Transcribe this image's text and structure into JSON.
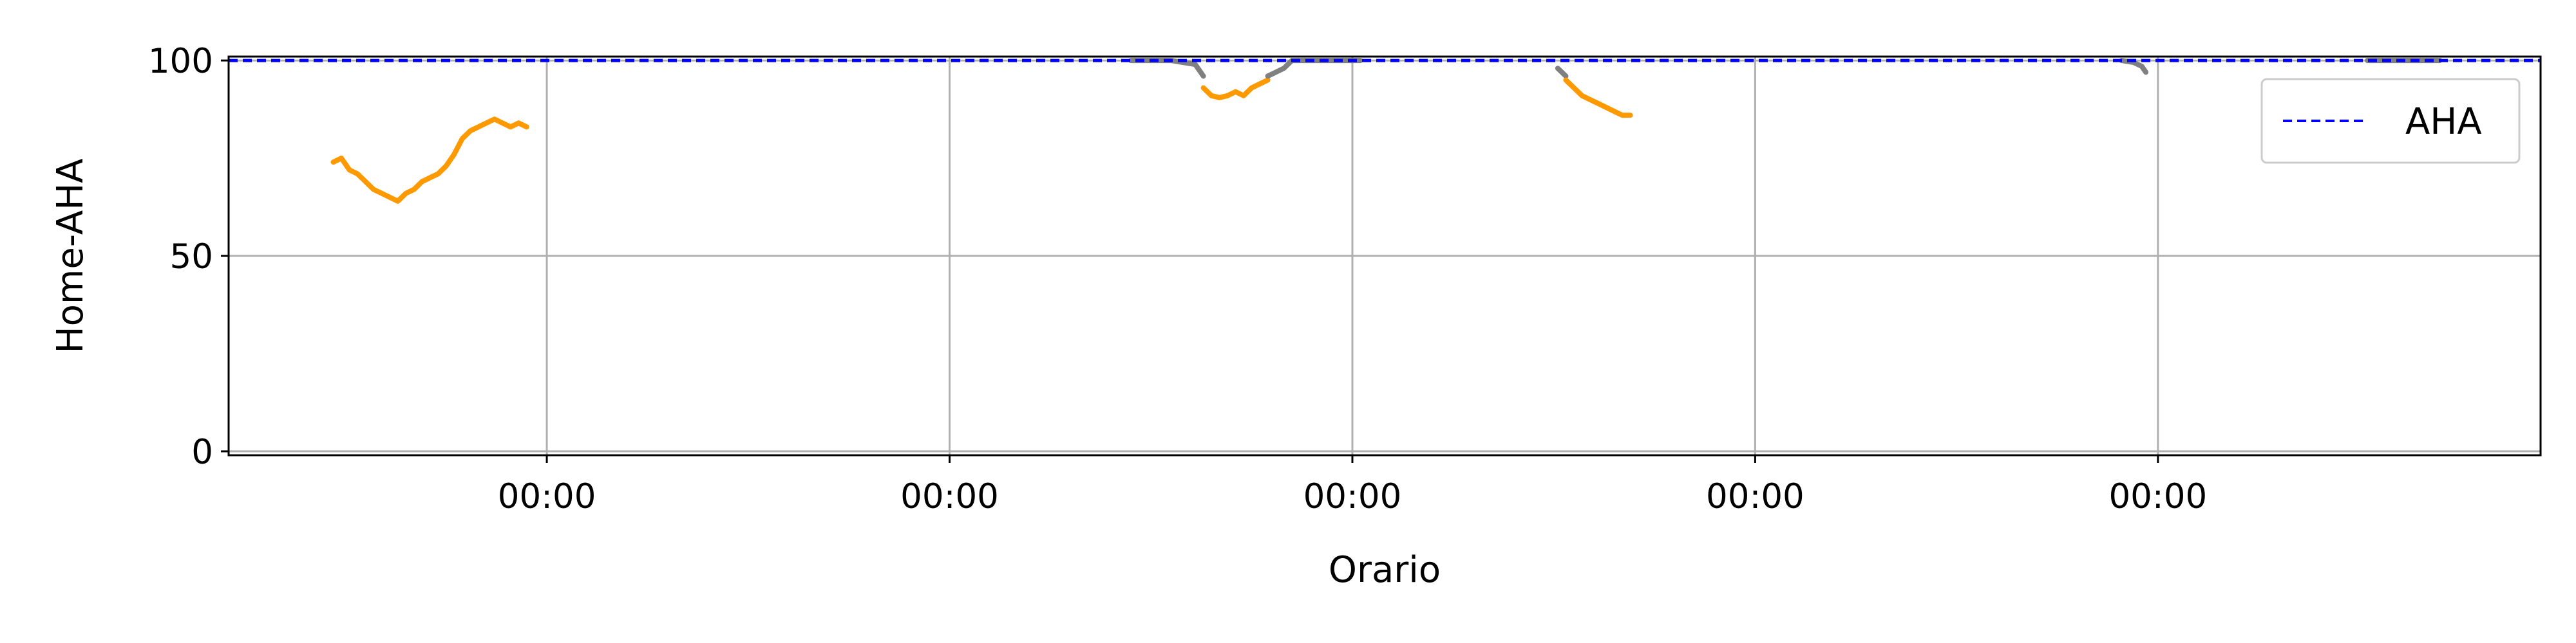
{
  "chart_data": {
    "type": "line",
    "title": "",
    "xlabel": "Orario",
    "ylabel": "Home-AHA",
    "ylim": [
      -1,
      101
    ],
    "yticks": [
      0,
      50,
      100
    ],
    "xticks": [
      {
        "pos": 1,
        "label": "00:00"
      },
      {
        "pos": 2,
        "label": "00:00"
      },
      {
        "pos": 3,
        "label": "00:00"
      },
      {
        "pos": 4,
        "label": "00:00"
      },
      {
        "pos": 5,
        "label": "00:00"
      }
    ],
    "xlim": [
      0.21,
      5.95
    ],
    "grid": true,
    "legend": {
      "position": "top-right",
      "entries": [
        "AHA"
      ]
    },
    "reference_line": {
      "name": "AHA",
      "value": 100,
      "color": "#0000ff",
      "style": "dashed"
    },
    "colors": {
      "orange": "#ff9900",
      "gray": "#808080",
      "grid": "#b0b0b0"
    },
    "series": [
      {
        "color": "#ff9900",
        "x": [
          0.47,
          0.49,
          0.51,
          0.53,
          0.55,
          0.57,
          0.59,
          0.61,
          0.63,
          0.65,
          0.67,
          0.69,
          0.71,
          0.73,
          0.75,
          0.77,
          0.79,
          0.81,
          0.83,
          0.85,
          0.87,
          0.89,
          0.91,
          0.93,
          0.95
        ],
        "y": [
          74,
          75,
          72,
          71,
          69,
          67,
          66,
          65,
          64,
          66,
          67,
          69,
          70,
          71,
          73,
          76,
          80,
          82,
          83,
          84,
          85,
          84,
          83,
          84,
          83
        ]
      },
      {
        "color": "#ff9900",
        "x": [
          2.63,
          2.65,
          2.67,
          2.69,
          2.71,
          2.73,
          2.75,
          2.77,
          2.79
        ],
        "y": [
          93,
          91,
          90.5,
          91,
          92,
          91,
          93,
          94,
          95
        ]
      },
      {
        "color": "#808080",
        "x": [
          2.45,
          2.55,
          2.61,
          2.63
        ],
        "y": [
          100,
          100,
          99,
          96
        ]
      },
      {
        "color": "#808080",
        "x": [
          2.79,
          2.81,
          2.83,
          2.85,
          2.9,
          3.02
        ],
        "y": [
          96,
          97,
          98,
          100,
          100,
          100
        ]
      },
      {
        "color": "#808080",
        "x": [
          3.51,
          3.52,
          3.53
        ],
        "y": [
          98,
          97,
          96
        ]
      },
      {
        "color": "#ff9900",
        "x": [
          3.53,
          3.55,
          3.57,
          3.59,
          3.61,
          3.63,
          3.65,
          3.67,
          3.69
        ],
        "y": [
          95,
          93,
          91,
          90,
          89,
          88,
          87,
          86,
          86
        ]
      },
      {
        "color": "#808080",
        "x": [
          4.91,
          4.94,
          4.96,
          4.97
        ],
        "y": [
          100,
          99.5,
          98.5,
          97
        ]
      },
      {
        "color": "#808080",
        "x": [
          5.52,
          5.7
        ],
        "y": [
          100,
          100
        ]
      }
    ]
  }
}
